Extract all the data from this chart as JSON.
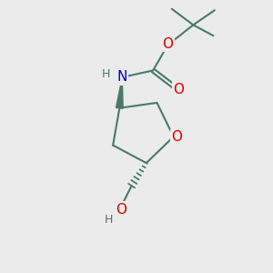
{
  "bg_color": "#ebebeb",
  "bond_color": "#4a7a6a",
  "bond_width": 1.5,
  "atom_colors": {
    "O": "#dd0000",
    "N": "#0000cc",
    "H": "#4a7a6a",
    "C": "#4a7a6a"
  },
  "font_size_atom": 11,
  "font_size_H": 9
}
